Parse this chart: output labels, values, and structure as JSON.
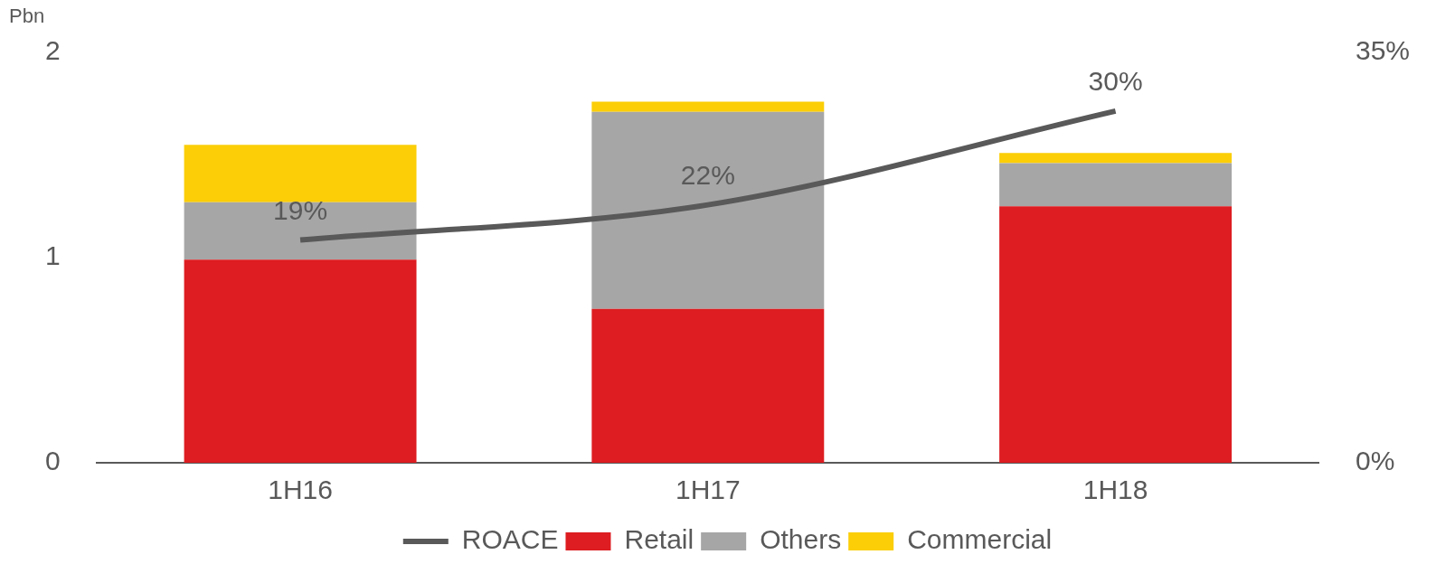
{
  "chart_data": {
    "type": "bar",
    "stacked": true,
    "ylabel": "Pbn",
    "categories": [
      "1H16",
      "1H17",
      "1H18"
    ],
    "series": [
      {
        "name": "Retail",
        "color": "#dd1d21",
        "values": [
          0.99,
          0.75,
          1.25
        ]
      },
      {
        "name": "Others",
        "color": "#a6a6a6",
        "values": [
          0.28,
          0.96,
          0.21
        ]
      },
      {
        "name": "Commercial",
        "color": "#fbce07",
        "values": [
          0.28,
          0.05,
          0.05
        ]
      },
      {
        "name": "ROACE",
        "type": "line",
        "axis": "y2",
        "color": "#595959",
        "values": [
          19,
          22,
          30
        ],
        "value_labels": [
          "19%",
          "22%",
          "30%"
        ]
      }
    ],
    "ylim": [
      0,
      2
    ],
    "yticks": [
      0,
      1,
      2
    ],
    "y2lim": [
      0,
      35
    ],
    "y2ticks": [
      {
        "value": 0,
        "label": "0%"
      },
      {
        "value": 35,
        "label": "35%"
      }
    ],
    "grid": false,
    "legend": "bottom",
    "marker": "none",
    "line_style": "solid"
  }
}
